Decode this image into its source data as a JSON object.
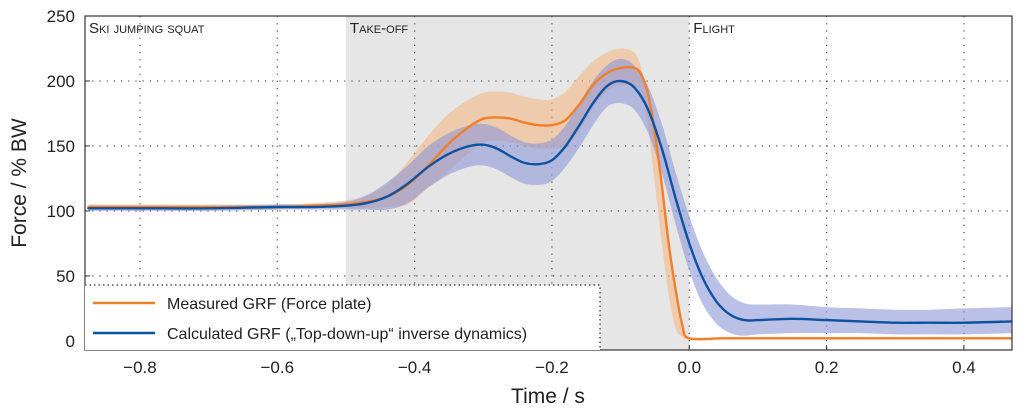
{
  "chart_data": {
    "type": "line",
    "xlabel": "Time / s",
    "ylabel": "Force / % BW",
    "xlim": [
      -0.88,
      0.47
    ],
    "ylim": [
      -7,
      250
    ],
    "xticks": [
      -0.8,
      -0.6,
      -0.4,
      -0.2,
      0.0,
      0.2,
      0.4
    ],
    "xtick_labels": [
      "−0.8",
      "−0.6",
      "−0.4",
      "−0.2",
      "0.0",
      "0.2",
      "0.4"
    ],
    "yticks": [
      0,
      50,
      100,
      150,
      200,
      250
    ],
    "ytick_labels": [
      "0",
      "50",
      "100",
      "150",
      "200",
      "250"
    ],
    "grid": true,
    "phases": [
      {
        "name": "Ski jumping squat",
        "start": -0.88,
        "end": -0.5,
        "shaded": false
      },
      {
        "name": "Take-off",
        "start": -0.5,
        "end": 0.0,
        "shaded": true
      },
      {
        "name": "Flight",
        "start": 0.0,
        "end": 0.47,
        "shaded": false
      }
    ],
    "legend_location": "lower-left",
    "series": [
      {
        "name": "Measured GRF (Force plate)",
        "color": "#f07f2a",
        "band_color": "#f4b98a",
        "x": [
          -0.875,
          -0.8,
          -0.7,
          -0.6,
          -0.55,
          -0.5,
          -0.47,
          -0.44,
          -0.41,
          -0.38,
          -0.35,
          -0.32,
          -0.3,
          -0.28,
          -0.26,
          -0.24,
          -0.22,
          -0.2,
          -0.18,
          -0.16,
          -0.14,
          -0.12,
          -0.1,
          -0.08,
          -0.07,
          -0.06,
          -0.05,
          -0.04,
          -0.03,
          -0.02,
          -0.01,
          0.0,
          0.05,
          0.1,
          0.2,
          0.3,
          0.47
        ],
        "mean": [
          103,
          103,
          103,
          103,
          104,
          105,
          107,
          111,
          120,
          135,
          152,
          165,
          171,
          172,
          171,
          168,
          166,
          166,
          170,
          182,
          197,
          206,
          210,
          210,
          205,
          190,
          160,
          120,
          75,
          40,
          12,
          2,
          2,
          2,
          2,
          2,
          2
        ],
        "upper": [
          105,
          105,
          105,
          105,
          106,
          108,
          112,
          120,
          138,
          158,
          175,
          186,
          191,
          192,
          191,
          188,
          186,
          186,
          192,
          204,
          215,
          222,
          225,
          222,
          210,
          185,
          155,
          115,
          72,
          38,
          12,
          3,
          3,
          3,
          3,
          3,
          3
        ],
        "lower": [
          101,
          101,
          101,
          101,
          102,
          102,
          102,
          103,
          105,
          118,
          131,
          145,
          153,
          154,
          153,
          150,
          148,
          148,
          150,
          162,
          180,
          192,
          197,
          196,
          190,
          165,
          120,
          75,
          35,
          10,
          3,
          1,
          1,
          1,
          1,
          1,
          1
        ]
      },
      {
        "name": "Calculated GRF („Top-down-up“ inverse dynamics)",
        "color": "#0d52a0",
        "band_color": "#8f9ad6",
        "x": [
          -0.875,
          -0.8,
          -0.7,
          -0.6,
          -0.55,
          -0.5,
          -0.47,
          -0.44,
          -0.41,
          -0.38,
          -0.35,
          -0.32,
          -0.3,
          -0.28,
          -0.26,
          -0.24,
          -0.22,
          -0.2,
          -0.18,
          -0.16,
          -0.14,
          -0.12,
          -0.1,
          -0.08,
          -0.06,
          -0.04,
          -0.02,
          0.0,
          0.02,
          0.04,
          0.06,
          0.08,
          0.1,
          0.15,
          0.2,
          0.25,
          0.3,
          0.35,
          0.4,
          0.47
        ],
        "mean": [
          102,
          102,
          102,
          103,
          103,
          104,
          106,
          111,
          121,
          134,
          144,
          150,
          151,
          148,
          142,
          137,
          136,
          139,
          150,
          166,
          183,
          196,
          200,
          195,
          178,
          148,
          110,
          75,
          48,
          30,
          20,
          16,
          16,
          17,
          16,
          15,
          14,
          14,
          14,
          15
        ],
        "upper": [
          104,
          104,
          104,
          105,
          105,
          107,
          112,
          122,
          135,
          150,
          160,
          166,
          167,
          164,
          158,
          153,
          152,
          155,
          166,
          183,
          200,
          212,
          217,
          212,
          196,
          167,
          130,
          96,
          68,
          48,
          35,
          29,
          28,
          28,
          26,
          25,
          24,
          24,
          25,
          26
        ],
        "lower": [
          100,
          100,
          100,
          101,
          101,
          101,
          101,
          101,
          106,
          118,
          128,
          134,
          135,
          132,
          126,
          121,
          120,
          123,
          134,
          149,
          166,
          180,
          183,
          178,
          160,
          129,
          90,
          54,
          28,
          13,
          6,
          4,
          5,
          6,
          6,
          6,
          5,
          5,
          5,
          6
        ]
      }
    ]
  }
}
